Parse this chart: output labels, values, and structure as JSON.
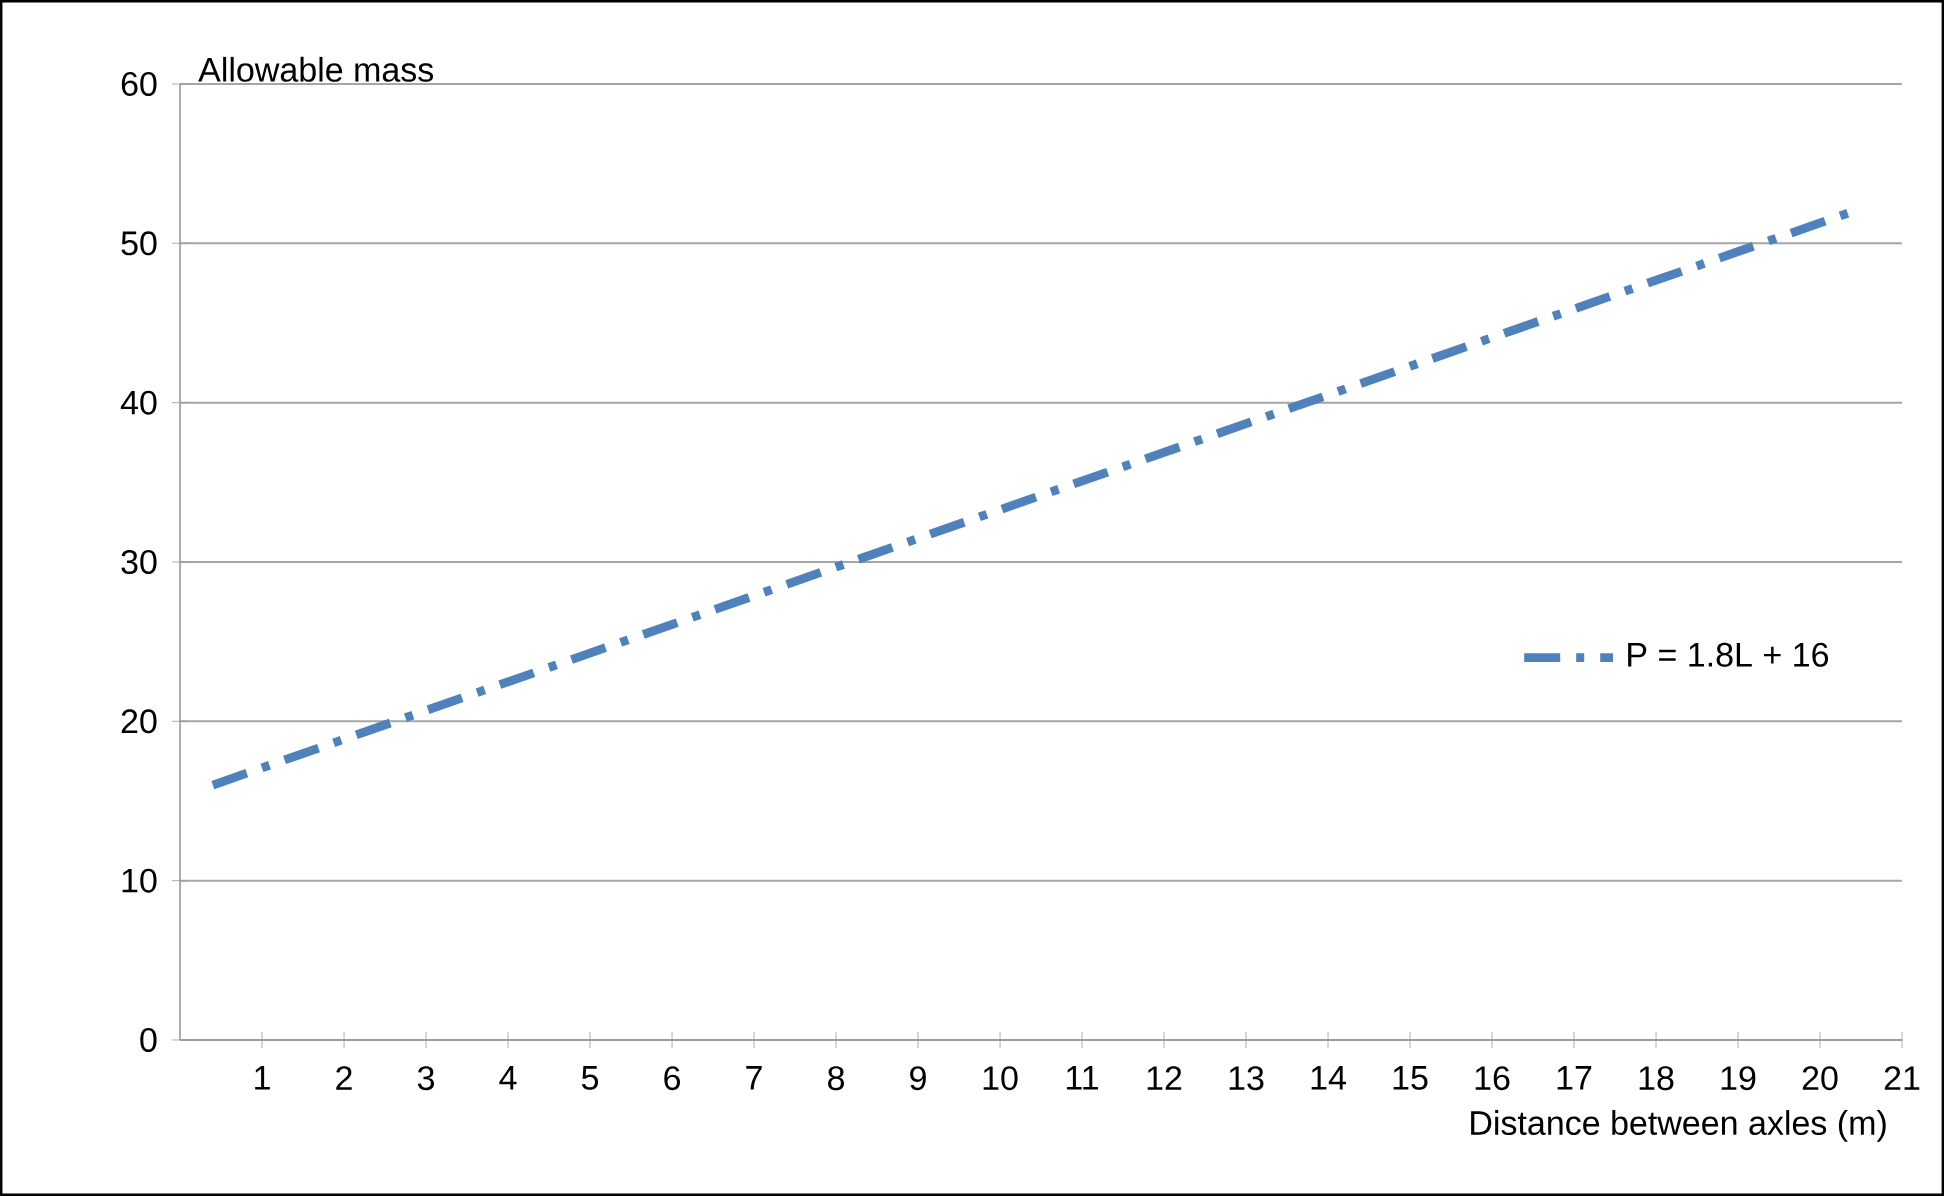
{
  "chart_data": {
    "type": "line",
    "xlabel": "Distance between axles (m)",
    "ylabel": "Allowable mass",
    "xlim": [
      0,
      21
    ],
    "xticks": [
      1,
      2,
      3,
      4,
      5,
      6,
      7,
      8,
      9,
      10,
      11,
      12,
      13,
      14,
      15,
      16,
      17,
      18,
      19,
      20,
      21
    ],
    "ylim": [
      0,
      60
    ],
    "yticks": [
      0,
      10,
      20,
      30,
      40,
      50,
      60
    ],
    "grid": "y",
    "legend": "right",
    "line_style": "dashdot",
    "marker": "none",
    "series": [
      {
        "name": "P = 1.8L + 16",
        "color": "#4f81bd",
        "x": [
          0.4,
          20.4
        ],
        "values": [
          16,
          52
        ]
      }
    ]
  }
}
